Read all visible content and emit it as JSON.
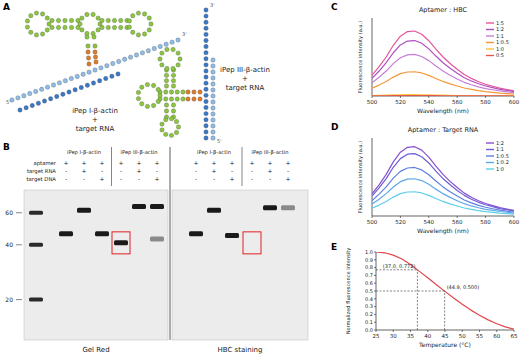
{
  "panel_labels": [
    "A",
    "B",
    "C",
    "D",
    "E"
  ],
  "panels": {
    "A": {
      "left": {
        "lines": [
          "iPep I-β-actin",
          "+",
          "target RNA"
        ],
        "ends": [
          "5'",
          "3'"
        ]
      },
      "right": {
        "lines": [
          "iPep III-β-actin",
          "+",
          "target RNA"
        ],
        "ends": [
          "3'",
          "5'"
        ]
      }
    },
    "B": {
      "columns": [
        "iPep I-β-actin",
        "iPep III-β-actin"
      ],
      "rows": [
        "aptamer",
        "target RNA",
        "target DNA"
      ],
      "lanes": [
        {
          "group": 0,
          "signs": [
            "+",
            "-",
            "-"
          ]
        },
        {
          "group": 0,
          "signs": [
            "+",
            "+",
            "-"
          ]
        },
        {
          "group": 0,
          "signs": [
            "+",
            "-",
            "+"
          ]
        },
        {
          "group": 1,
          "signs": [
            "+",
            "-",
            "-"
          ]
        },
        {
          "group": 1,
          "signs": [
            "+",
            "+",
            "-"
          ]
        },
        {
          "group": 1,
          "signs": [
            "+",
            "-",
            "+"
          ]
        }
      ],
      "ylim": [
        12,
        80
      ],
      "yticks": [
        60,
        40,
        20
      ],
      "log": true,
      "gels": [
        {
          "caption": "Gel Red",
          "highlight": 3,
          "bands": [
            [
              {
                "size": 46
              }
            ],
            [
              {
                "size": 62
              }
            ],
            [
              {
                "size": 46
              }
            ],
            [
              {
                "size": 41
              }
            ],
            [
              {
                "size": 65
              }
            ],
            [
              {
                "size": 65
              },
              {
                "size": 43,
                "faint": true
              }
            ]
          ]
        },
        {
          "caption": "HBC staining",
          "highlight": 3,
          "bands": [
            [
              {
                "size": 46
              }
            ],
            [
              {
                "size": 62
              }
            ],
            [
              {
                "size": 45
              }
            ],
            [],
            [
              {
                "size": 64
              }
            ],
            [
              {
                "size": 64,
                "faint": true
              }
            ]
          ]
        }
      ]
    }
  },
  "chart_data": [
    {
      "type": "line",
      "title": "Aptamer : HBC",
      "x_label": "Wavelength (nm)",
      "y_label": "Fluorescence intensity (a.u.)",
      "x": [
        500,
        505,
        510,
        515,
        520,
        525,
        530,
        535,
        540,
        545,
        550,
        555,
        560,
        565,
        570,
        575,
        580,
        585,
        590,
        595,
        600
      ],
      "xlim": [
        500,
        600
      ],
      "xticks": [
        500,
        520,
        540,
        560,
        580,
        600
      ],
      "ylim": [
        0,
        900
      ],
      "yticks": [],
      "tick_labels": "x",
      "legend": "upper right",
      "series": [
        {
          "name": "1:5",
          "color": "#e6559b",
          "values": [
            240,
            338,
            450,
            585,
            690,
            743,
            750,
            713,
            638,
            540,
            450,
            375,
            308,
            248,
            203,
            165,
            135,
            113,
            90,
            75,
            60
          ]
        },
        {
          "name": "1:2",
          "color": "#b04fc0",
          "values": [
            205,
            288,
            384,
            499,
            589,
            634,
            640,
            608,
            544,
            461,
            384,
            320,
            262,
            211,
            173,
            141,
            115,
            96,
            77,
            64,
            51
          ]
        },
        {
          "name": "1:1",
          "color": "#c47fd6",
          "values": [
            154,
            216,
            288,
            374,
            442,
            475,
            480,
            456,
            408,
            346,
            288,
            240,
            197,
            158,
            130,
            106,
            86,
            72,
            58,
            48,
            38
          ]
        },
        {
          "name": "1:0.5",
          "color": "#f29a3a",
          "values": [
            90,
            126,
            168,
            218,
            258,
            277,
            280,
            266,
            238,
            202,
            168,
            140,
            115,
            92,
            76,
            62,
            50,
            42,
            34,
            28,
            22
          ]
        },
        {
          "name": "1:0",
          "color": "#f5c842",
          "values": [
            5,
            7,
            9,
            12,
            14,
            15,
            15,
            14,
            13,
            11,
            9,
            8,
            6,
            5,
            4,
            3,
            3,
            2,
            2,
            2,
            1
          ]
        },
        {
          "name": "0:5",
          "color": "#e8554a",
          "values": [
            2,
            2,
            3,
            4,
            5,
            5,
            5,
            5,
            4,
            4,
            3,
            3,
            2,
            2,
            1,
            1,
            1,
            1,
            1,
            1,
            0
          ]
        }
      ]
    },
    {
      "type": "line",
      "title": "Aptamer : Target RNA",
      "x_label": "Wavelength (nm)",
      "y_label": "Fluorescence intensity (a.u.)",
      "x": [
        500,
        505,
        510,
        515,
        520,
        525,
        530,
        535,
        540,
        545,
        550,
        555,
        560,
        565,
        570,
        575,
        580,
        585,
        590,
        595,
        600
      ],
      "xlim": [
        500,
        600
      ],
      "xticks": [
        500,
        520,
        540,
        560,
        580,
        600
      ],
      "ylim": [
        0,
        900
      ],
      "yticks": [],
      "tick_labels": "x",
      "legend": "upper right",
      "series": [
        {
          "name": "1:2",
          "color": "#8a4fd0",
          "values": [
            256,
            360,
            480,
            624,
            736,
            792,
            800,
            760,
            680,
            576,
            480,
            400,
            328,
            264,
            216,
            176,
            144,
            120,
            96,
            80,
            64
          ]
        },
        {
          "name": "1:1",
          "color": "#6a5fd8",
          "values": [
            230,
            324,
            432,
            562,
            662,
            713,
            720,
            684,
            612,
            518,
            432,
            360,
            295,
            238,
            194,
            158,
            130,
            108,
            86,
            72,
            58
          ]
        },
        {
          "name": "1:0.5",
          "color": "#5f7fe0",
          "values": [
            179,
            252,
            336,
            437,
            515,
            554,
            560,
            532,
            476,
            403,
            336,
            280,
            230,
            185,
            151,
            123,
            101,
            84,
            67,
            56,
            45
          ]
        },
        {
          "name": "1:0.2",
          "color": "#5fa8e8",
          "values": [
            138,
            194,
            258,
            335,
            396,
            426,
            430,
            409,
            366,
            310,
            258,
            215,
            176,
            142,
            116,
            95,
            77,
            65,
            52,
            43,
            34
          ]
        },
        {
          "name": "1:0",
          "color": "#5fd0e8",
          "values": [
            90,
            126,
            168,
            218,
            258,
            277,
            280,
            266,
            238,
            202,
            168,
            140,
            115,
            92,
            76,
            62,
            50,
            42,
            34,
            28,
            22
          ]
        }
      ]
    },
    {
      "type": "line",
      "x_label": "Temperature (°C)",
      "y_label": "Normalized fluorescence intensity",
      "x": [
        25,
        27.5,
        30,
        32.5,
        35,
        37.5,
        40,
        42.5,
        45,
        47.5,
        50,
        52.5,
        55,
        57.5,
        60,
        62.5,
        65
      ],
      "xlim": [
        25,
        65
      ],
      "xticks": [
        25,
        30,
        35,
        40,
        45,
        50,
        55,
        60,
        65
      ],
      "ylim": [
        0,
        1
      ],
      "yticks": [
        {
          "value": 0,
          "label": "0.0"
        },
        0.1,
        0.2,
        0.3,
        0.4,
        0.5,
        0.6,
        0.7,
        0.8,
        0.9,
        {
          "value": 1,
          "label": "1.0"
        }
      ],
      "series": [
        {
          "color": "#e0474c",
          "values": [
            1.0,
            0.99,
            0.96,
            0.91,
            0.84,
            0.755,
            0.67,
            0.58,
            0.495,
            0.41,
            0.33,
            0.255,
            0.19,
            0.13,
            0.08,
            0.04,
            0.01
          ]
        }
      ],
      "annotations": [
        {
          "x": 37.0,
          "y": 0.772,
          "label": "(37.0, 0.772)"
        },
        {
          "x": 44.9,
          "y": 0.5,
          "label": "(44.9, 0.500)"
        }
      ]
    }
  ]
}
